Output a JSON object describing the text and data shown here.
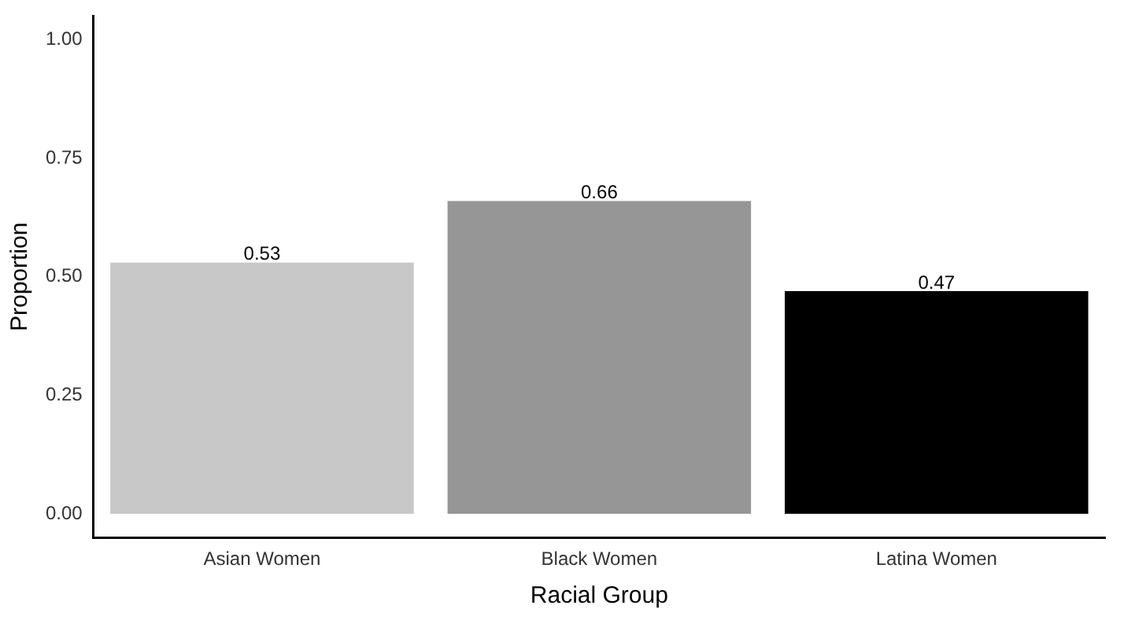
{
  "chart_data": {
    "type": "bar",
    "xlabel": "Racial Group",
    "ylabel": "Proportion",
    "categories": [
      "Asian Women",
      "Black Women",
      "Latina Women"
    ],
    "values": [
      0.53,
      0.66,
      0.47
    ],
    "colors": [
      "#c8c8c8",
      "#969696",
      "#000000"
    ],
    "ylim": [
      -0.05,
      1.05
    ],
    "yticks": [
      {
        "value": 0,
        "label": "0.00"
      },
      {
        "value": 0.25,
        "label": "0.25"
      },
      {
        "value": 0.5,
        "label": "0.50"
      },
      {
        "value": 0.75,
        "label": "0.75"
      },
      {
        "value": 1,
        "label": "1.00"
      }
    ],
    "data_labels": true,
    "grid": false,
    "legend": false
  }
}
